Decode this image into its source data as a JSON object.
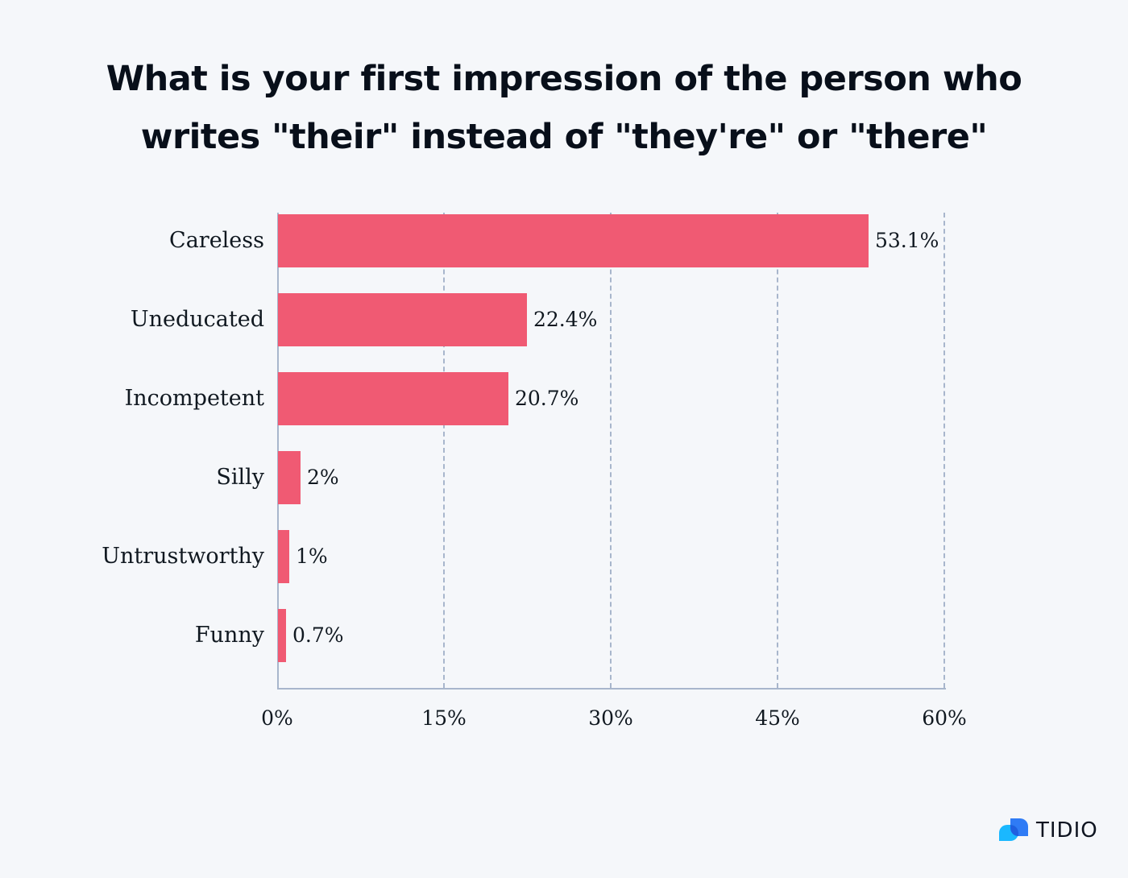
{
  "title": {
    "line1": "What is your first impression of the person who",
    "line2": "writes \"their\" instead of \"they're\" or \"there\""
  },
  "axis": {
    "ticks": [
      "0%",
      "15%",
      "30%",
      "45%",
      "60%"
    ],
    "tick_values": [
      0,
      15,
      30,
      45,
      60
    ]
  },
  "bars": [
    {
      "label": "Careless",
      "value": 53.1,
      "display": "53.1%"
    },
    {
      "label": "Uneducated",
      "value": 22.4,
      "display": "22.4%"
    },
    {
      "label": "Incompetent",
      "value": 20.7,
      "display": "20.7%"
    },
    {
      "label": "Silly",
      "value": 2,
      "display": "2%"
    },
    {
      "label": "Untrustworthy",
      "value": 1,
      "display": "1%"
    },
    {
      "label": "Funny",
      "value": 0.7,
      "display": "0.7%"
    }
  ],
  "colors": {
    "bar": "#f05a73",
    "axis": "#a8b6cc",
    "background": "#f5f7fa",
    "text": "#101820",
    "logo_blue": "#2f7bf5",
    "logo_cyan": "#1ab8ff"
  },
  "logo": {
    "text": "TIDIO"
  },
  "chart_data": {
    "type": "bar",
    "orientation": "horizontal",
    "title": "What is your first impression of the person who writes \"their\" instead of \"they're\" or \"there\"",
    "categories": [
      "Careless",
      "Uneducated",
      "Incompetent",
      "Silly",
      "Untrustworthy",
      "Funny"
    ],
    "values": [
      53.1,
      22.4,
      20.7,
      2,
      1,
      0.7
    ],
    "data_labels": [
      "53.1%",
      "22.4%",
      "20.7%",
      "2%",
      "1%",
      "0.7%"
    ],
    "xlabel": "",
    "ylabel": "",
    "xlim": [
      0,
      60
    ],
    "xticks": [
      "0%",
      "15%",
      "30%",
      "45%",
      "60%"
    ],
    "grid": "vertical dashed at 15%, 30%, 45%, 60%",
    "legend": "none",
    "source_logo": "TIDIO"
  }
}
